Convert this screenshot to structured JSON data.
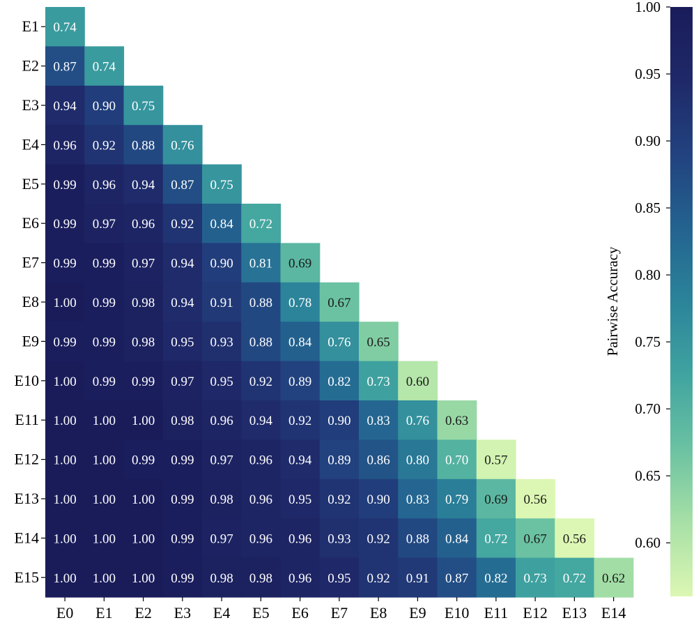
{
  "chart_data": {
    "type": "heatmap",
    "shape": "lower-triangular",
    "x_labels": [
      "E0",
      "E1",
      "E2",
      "E3",
      "E4",
      "E5",
      "E6",
      "E7",
      "E8",
      "E9",
      "E10",
      "E11",
      "E12",
      "E13",
      "E14"
    ],
    "y_labels": [
      "E1",
      "E2",
      "E3",
      "E4",
      "E5",
      "E6",
      "E7",
      "E8",
      "E9",
      "E10",
      "E11",
      "E12",
      "E13",
      "E14",
      "E15"
    ],
    "values": [
      [
        0.74
      ],
      [
        0.87,
        0.74
      ],
      [
        0.94,
        0.9,
        0.75
      ],
      [
        0.96,
        0.92,
        0.88,
        0.76
      ],
      [
        0.99,
        0.96,
        0.94,
        0.87,
        0.75
      ],
      [
        0.99,
        0.97,
        0.96,
        0.92,
        0.84,
        0.72
      ],
      [
        0.99,
        0.99,
        0.97,
        0.94,
        0.9,
        0.81,
        0.69
      ],
      [
        1.0,
        0.99,
        0.98,
        0.94,
        0.91,
        0.88,
        0.78,
        0.67
      ],
      [
        0.99,
        0.99,
        0.98,
        0.95,
        0.93,
        0.88,
        0.84,
        0.76,
        0.65
      ],
      [
        1.0,
        0.99,
        0.99,
        0.97,
        0.95,
        0.92,
        0.89,
        0.82,
        0.73,
        0.6
      ],
      [
        1.0,
        1.0,
        1.0,
        0.98,
        0.96,
        0.94,
        0.92,
        0.9,
        0.83,
        0.76,
        0.63
      ],
      [
        1.0,
        1.0,
        0.99,
        0.99,
        0.97,
        0.96,
        0.94,
        0.89,
        0.86,
        0.8,
        0.7,
        0.57
      ],
      [
        1.0,
        1.0,
        1.0,
        0.99,
        0.98,
        0.96,
        0.95,
        0.92,
        0.9,
        0.83,
        0.79,
        0.69,
        0.56
      ],
      [
        1.0,
        1.0,
        1.0,
        0.99,
        0.97,
        0.96,
        0.96,
        0.93,
        0.92,
        0.88,
        0.84,
        0.72,
        0.67,
        0.56
      ],
      [
        1.0,
        1.0,
        1.0,
        0.99,
        0.98,
        0.98,
        0.96,
        0.95,
        0.92,
        0.91,
        0.87,
        0.82,
        0.73,
        0.72,
        0.62
      ]
    ],
    "colorbar": {
      "label": "Pairwise Accuracy",
      "vmin": 0.56,
      "vmax": 1.0,
      "ticks": [
        "0.60",
        "0.65",
        "0.70",
        "0.75",
        "0.80",
        "0.85",
        "0.90",
        "0.95",
        "1.00"
      ],
      "colormap": "YlGnBu-dark",
      "colors": [
        "#dcf7b3",
        "#a7e0a6",
        "#6bc2a2",
        "#40a4a0",
        "#2b849a",
        "#236390",
        "#22427f",
        "#1f2969",
        "#1a1c5a"
      ]
    },
    "annotation_threshold_dark_text": 0.7,
    "dark_text_color": "#1a1a1a",
    "light_text_color": "#ffffff"
  }
}
